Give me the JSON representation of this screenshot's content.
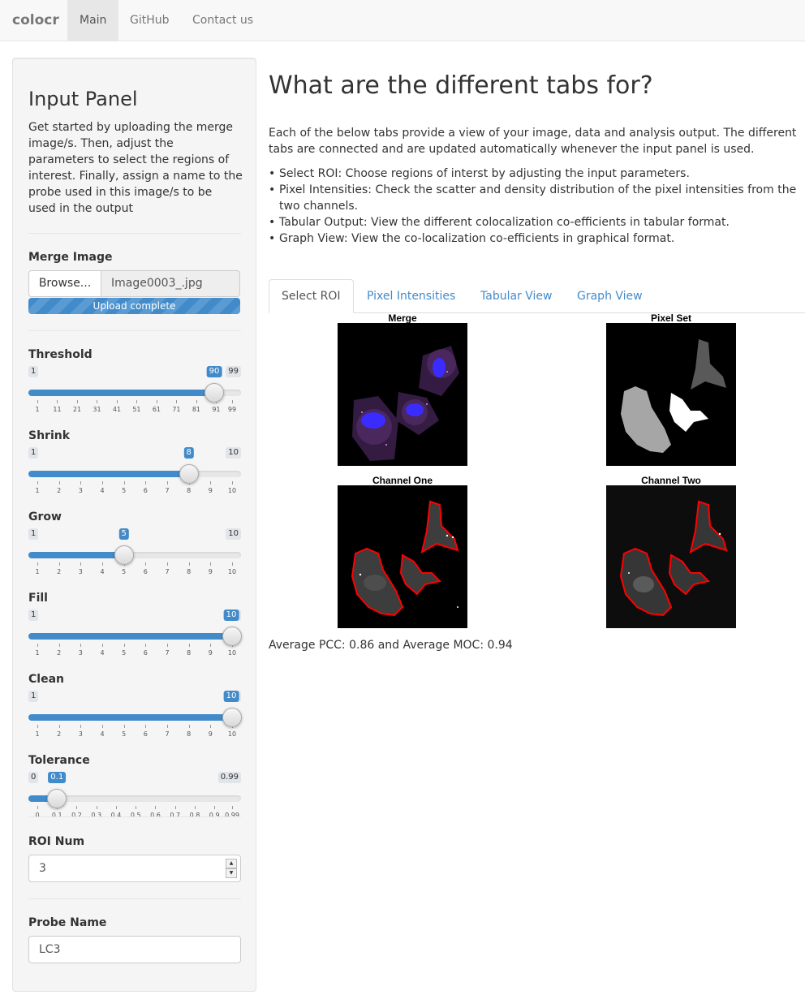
{
  "navbar": {
    "brand": "colocr",
    "links": [
      "Main",
      "GitHub",
      "Contact us"
    ]
  },
  "sidebar": {
    "title": "Input Panel",
    "description": "Get started by uploading the merge image/s. Then, adjust the parameters to select the regions of interest. Finally, assign a name to the probe used in this image/s to be used in the output",
    "merge_image": {
      "label": "Merge Image",
      "browse_label": "Browse...",
      "file_name": "Image0003_.jpg",
      "progress_text": "Upload complete",
      "progress_value": 1.0
    },
    "sliders": [
      {
        "label": "Threshold",
        "min": "1",
        "max": "99",
        "value": "90",
        "ticks": [
          "1",
          "11",
          "21",
          "31",
          "41",
          "51",
          "61",
          "71",
          "81",
          "91",
          "99"
        ]
      },
      {
        "label": "Shrink",
        "min": "1",
        "max": "10",
        "value": "8",
        "ticks": [
          "1",
          "2",
          "3",
          "4",
          "5",
          "6",
          "7",
          "8",
          "9",
          "10"
        ]
      },
      {
        "label": "Grow",
        "min": "1",
        "max": "10",
        "value": "5",
        "ticks": [
          "1",
          "2",
          "3",
          "4",
          "5",
          "6",
          "7",
          "8",
          "9",
          "10"
        ]
      },
      {
        "label": "Fill",
        "min": "1",
        "max": "10",
        "value": "10",
        "ticks": [
          "1",
          "2",
          "3",
          "4",
          "5",
          "6",
          "7",
          "8",
          "9",
          "10"
        ]
      },
      {
        "label": "Clean",
        "min": "1",
        "max": "10",
        "value": "10",
        "ticks": [
          "1",
          "2",
          "3",
          "4",
          "5",
          "6",
          "7",
          "8",
          "9",
          "10"
        ]
      },
      {
        "label": "Tolerance",
        "min": "0",
        "max": "0.99",
        "value": "0.1",
        "ticks": [
          "0",
          "0.1",
          "0.2",
          "0.3",
          "0.4",
          "0.5",
          "0.6",
          "0.7",
          "0.8",
          "0.9",
          "0.99"
        ]
      }
    ],
    "roi_num": {
      "label": "ROI Num",
      "value": "3"
    },
    "probe_name": {
      "label": "Probe Name",
      "value": "LC3"
    }
  },
  "main": {
    "title": "What are the different tabs for?",
    "intro": "Each of the below tabs provide a view of your image, data and analysis output. The different tabs are connected and are updated automatically whenever the input panel is used.",
    "bullets": [
      "Select ROI: Choose regions of interst by adjusting the input parameters.",
      "Pixel Intensities: Check the scatter and density distribution of the pixel intensities from the two channels.",
      "Tabular Output: View the different colocalization co-efficients in tabular format.",
      "Graph View: View the co-localization co-efficients in graphical format."
    ],
    "tabs": [
      "Select ROI",
      "Pixel Intensities",
      "Tabular View",
      "Graph View"
    ],
    "active_tab": "Select ROI",
    "plots": [
      "Merge",
      "Pixel Set",
      "Channel One",
      "Channel Two"
    ],
    "stat_text": "Average PCC: 0.86 and Average MOC: 0.94"
  },
  "colors": {
    "accent": "#428bca",
    "roi_outline": "#ff0000",
    "nucleus": "#3a2cff"
  }
}
